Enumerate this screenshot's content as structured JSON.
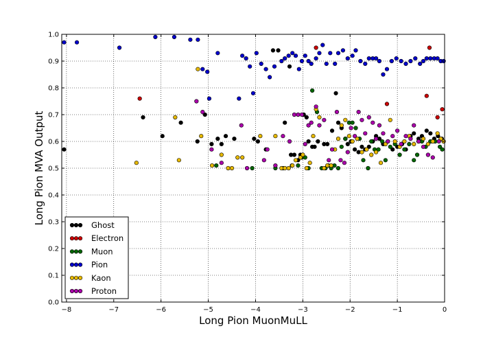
{
  "chart_data": {
    "type": "scatter",
    "title": "",
    "xlabel": "Long Pion MuonMuLL",
    "ylabel": "Long Pion MVA Output",
    "xlim": [
      -8.1,
      0
    ],
    "ylim": [
      0,
      1
    ],
    "xticks": [
      -8,
      -7,
      -6,
      -5,
      -4,
      -3,
      -2,
      -1,
      0
    ],
    "xtick_labels": [
      "−8",
      "−7",
      "−6",
      "−5",
      "−4",
      "−3",
      "−2",
      "−1",
      "0"
    ],
    "yticks": [
      0.0,
      0.1,
      0.2,
      0.3,
      0.4,
      0.5,
      0.6,
      0.7,
      0.8,
      0.9,
      1.0
    ],
    "ytick_labels": [
      "0.0",
      "0.1",
      "0.2",
      "0.3",
      "0.4",
      "0.5",
      "0.6",
      "0.7",
      "0.8",
      "0.9",
      "1.0"
    ],
    "grid": true,
    "legend_position": "bottom-left",
    "series": [
      {
        "name": "Ghost",
        "color": "#000000",
        "points": [
          [
            -8.05,
            0.57
          ],
          [
            -6.38,
            0.69
          ],
          [
            -5.97,
            0.62
          ],
          [
            -5.58,
            0.67
          ],
          [
            -5.23,
            0.6
          ],
          [
            -5.07,
            0.7
          ],
          [
            -4.93,
            0.59
          ],
          [
            -4.8,
            0.61
          ],
          [
            -4.72,
            0.59
          ],
          [
            -4.63,
            0.62
          ],
          [
            -4.45,
            0.61
          ],
          [
            -4.03,
            0.61
          ],
          [
            -3.95,
            0.6
          ],
          [
            -3.78,
            0.57
          ],
          [
            -3.63,
            0.94
          ],
          [
            -3.52,
            0.94
          ],
          [
            -3.38,
            0.67
          ],
          [
            -3.28,
            0.88
          ],
          [
            -3.25,
            0.55
          ],
          [
            -3.18,
            0.55
          ],
          [
            -3.1,
            0.53
          ],
          [
            -3.05,
            0.55
          ],
          [
            -2.98,
            0.7
          ],
          [
            -2.92,
            0.69
          ],
          [
            -2.88,
            0.6
          ],
          [
            -2.8,
            0.58
          ],
          [
            -2.75,
            0.58
          ],
          [
            -2.68,
            0.6
          ],
          [
            -2.55,
            0.59
          ],
          [
            -2.48,
            0.59
          ],
          [
            -2.38,
            0.64
          ],
          [
            -2.3,
            0.78
          ],
          [
            -2.25,
            0.67
          ],
          [
            -2.18,
            0.65
          ],
          [
            -2.1,
            0.61
          ],
          [
            -2.05,
            0.59
          ],
          [
            -1.98,
            0.6
          ],
          [
            -1.9,
            0.57
          ],
          [
            -1.82,
            0.56
          ],
          [
            -1.75,
            0.58
          ],
          [
            -1.68,
            0.57
          ],
          [
            -1.6,
            0.58
          ],
          [
            -1.52,
            0.6
          ],
          [
            -1.45,
            0.62
          ],
          [
            -1.38,
            0.61
          ],
          [
            -1.3,
            0.59
          ],
          [
            -1.2,
            0.6
          ],
          [
            -1.1,
            0.57
          ],
          [
            -1.0,
            0.58
          ],
          [
            -0.9,
            0.59
          ],
          [
            -0.82,
            0.57
          ],
          [
            -0.72,
            0.62
          ],
          [
            -0.65,
            0.63
          ],
          [
            -0.55,
            0.61
          ],
          [
            -0.48,
            0.62
          ],
          [
            -0.38,
            0.64
          ],
          [
            -0.3,
            0.63
          ],
          [
            -0.22,
            0.61
          ],
          [
            -0.14,
            0.62
          ],
          [
            -0.06,
            0.61
          ]
        ]
      },
      {
        "name": "Electron",
        "color": "#cc0000",
        "points": [
          [
            -6.45,
            0.76
          ],
          [
            -2.72,
            0.95
          ],
          [
            -0.38,
            0.77
          ],
          [
            -0.32,
            0.95
          ],
          [
            -0.15,
            0.69
          ],
          [
            -0.05,
            0.72
          ],
          [
            -1.22,
            0.74
          ]
        ]
      },
      {
        "name": "Muon",
        "color": "#006600",
        "points": [
          [
            -4.83,
            0.51
          ],
          [
            -4.07,
            0.5
          ],
          [
            -3.58,
            0.5
          ],
          [
            -3.42,
            0.5
          ],
          [
            -3.23,
            0.51
          ],
          [
            -3.1,
            0.51
          ],
          [
            -3.02,
            0.54
          ],
          [
            -2.95,
            0.54
          ],
          [
            -2.88,
            0.5
          ],
          [
            -2.8,
            0.79
          ],
          [
            -2.7,
            0.71
          ],
          [
            -2.6,
            0.5
          ],
          [
            -2.52,
            0.5
          ],
          [
            -2.46,
            0.51
          ],
          [
            -2.4,
            0.5
          ],
          [
            -2.33,
            0.51
          ],
          [
            -2.25,
            0.5
          ],
          [
            -2.18,
            0.58
          ],
          [
            -2.1,
            0.61
          ],
          [
            -2.02,
            0.67
          ],
          [
            -1.95,
            0.67
          ],
          [
            -1.88,
            0.65
          ],
          [
            -1.8,
            0.61
          ],
          [
            -1.72,
            0.53
          ],
          [
            -1.62,
            0.5
          ],
          [
            -1.55,
            0.6
          ],
          [
            -1.48,
            0.57
          ],
          [
            -1.4,
            0.57
          ],
          [
            -1.32,
            0.6
          ],
          [
            -1.25,
            0.53
          ],
          [
            -1.15,
            0.58
          ],
          [
            -1.05,
            0.59
          ],
          [
            -0.95,
            0.55
          ],
          [
            -0.85,
            0.57
          ],
          [
            -0.75,
            0.59
          ],
          [
            -0.65,
            0.53
          ],
          [
            -0.58,
            0.55
          ],
          [
            -0.48,
            0.6
          ],
          [
            -0.4,
            0.58
          ],
          [
            -0.3,
            0.6
          ],
          [
            -0.2,
            0.6
          ],
          [
            -0.1,
            0.58
          ],
          [
            -0.05,
            0.57
          ]
        ]
      },
      {
        "name": "Pion",
        "color": "#0000cc",
        "points": [
          [
            -8.05,
            0.97
          ],
          [
            -7.78,
            0.97
          ],
          [
            -6.88,
            0.95
          ],
          [
            -6.12,
            0.99
          ],
          [
            -5.72,
            0.99
          ],
          [
            -5.38,
            0.98
          ],
          [
            -5.22,
            0.98
          ],
          [
            -5.12,
            0.87
          ],
          [
            -5.02,
            0.86
          ],
          [
            -4.98,
            0.76
          ],
          [
            -4.8,
            0.93
          ],
          [
            -4.35,
            0.76
          ],
          [
            -4.28,
            0.92
          ],
          [
            -4.2,
            0.91
          ],
          [
            -4.12,
            0.88
          ],
          [
            -4.05,
            0.78
          ],
          [
            -3.98,
            0.93
          ],
          [
            -3.88,
            0.89
          ],
          [
            -3.78,
            0.87
          ],
          [
            -3.7,
            0.84
          ],
          [
            -3.6,
            0.88
          ],
          [
            -3.45,
            0.9
          ],
          [
            -3.38,
            0.91
          ],
          [
            -3.3,
            0.92
          ],
          [
            -3.22,
            0.93
          ],
          [
            -3.15,
            0.92
          ],
          [
            -3.08,
            0.87
          ],
          [
            -3.02,
            0.9
          ],
          [
            -2.95,
            0.92
          ],
          [
            -2.88,
            0.9
          ],
          [
            -2.82,
            0.89
          ],
          [
            -2.72,
            0.91
          ],
          [
            -2.65,
            0.93
          ],
          [
            -2.58,
            0.96
          ],
          [
            -2.5,
            0.89
          ],
          [
            -2.42,
            0.93
          ],
          [
            -2.32,
            0.89
          ],
          [
            -2.25,
            0.93
          ],
          [
            -2.15,
            0.94
          ],
          [
            -2.05,
            0.91
          ],
          [
            -1.95,
            0.92
          ],
          [
            -1.88,
            0.94
          ],
          [
            -1.78,
            0.9
          ],
          [
            -1.68,
            0.89
          ],
          [
            -1.6,
            0.91
          ],
          [
            -1.52,
            0.91
          ],
          [
            -1.45,
            0.91
          ],
          [
            -1.38,
            0.9
          ],
          [
            -1.3,
            0.85
          ],
          [
            -1.22,
            0.87
          ],
          [
            -1.12,
            0.9
          ],
          [
            -1.02,
            0.91
          ],
          [
            -0.92,
            0.9
          ],
          [
            -0.82,
            0.89
          ],
          [
            -0.72,
            0.9
          ],
          [
            -0.62,
            0.91
          ],
          [
            -0.52,
            0.89
          ],
          [
            -0.45,
            0.9
          ],
          [
            -0.38,
            0.91
          ],
          [
            -0.3,
            0.91
          ],
          [
            -0.22,
            0.91
          ],
          [
            -0.15,
            0.91
          ],
          [
            -0.08,
            0.9
          ],
          [
            -0.02,
            0.9
          ]
        ]
      },
      {
        "name": "Kaon",
        "color": "#e6b800",
        "points": [
          [
            -6.52,
            0.52
          ],
          [
            -5.7,
            0.69
          ],
          [
            -5.62,
            0.53
          ],
          [
            -5.22,
            0.87
          ],
          [
            -5.15,
            0.62
          ],
          [
            -4.92,
            0.51
          ],
          [
            -4.72,
            0.55
          ],
          [
            -4.58,
            0.5
          ],
          [
            -4.5,
            0.5
          ],
          [
            -4.38,
            0.54
          ],
          [
            -4.28,
            0.54
          ],
          [
            -3.9,
            0.62
          ],
          [
            -3.58,
            0.62
          ],
          [
            -3.45,
            0.5
          ],
          [
            -3.38,
            0.5
          ],
          [
            -3.3,
            0.5
          ],
          [
            -3.22,
            0.51
          ],
          [
            -3.15,
            0.53
          ],
          [
            -3.05,
            0.54
          ],
          [
            -3.0,
            0.55
          ],
          [
            -2.92,
            0.5
          ],
          [
            -2.85,
            0.52
          ],
          [
            -2.78,
            0.62
          ],
          [
            -2.72,
            0.72
          ],
          [
            -2.65,
            0.69
          ],
          [
            -2.55,
            0.5
          ],
          [
            -2.48,
            0.51
          ],
          [
            -2.4,
            0.51
          ],
          [
            -2.32,
            0.57
          ],
          [
            -2.25,
            0.61
          ],
          [
            -2.18,
            0.66
          ],
          [
            -2.1,
            0.68
          ],
          [
            -2.02,
            0.62
          ],
          [
            -1.95,
            0.6
          ],
          [
            -1.85,
            0.61
          ],
          [
            -1.75,
            0.56
          ],
          [
            -1.65,
            0.57
          ],
          [
            -1.55,
            0.55
          ],
          [
            -1.45,
            0.56
          ],
          [
            -1.35,
            0.52
          ],
          [
            -1.25,
            0.59
          ],
          [
            -1.15,
            0.68
          ],
          [
            -1.05,
            0.6
          ],
          [
            -0.95,
            0.58
          ],
          [
            -0.85,
            0.6
          ],
          [
            -0.75,
            0.62
          ],
          [
            -0.65,
            0.59
          ],
          [
            -0.55,
            0.6
          ],
          [
            -0.45,
            0.61
          ],
          [
            -0.35,
            0.59
          ],
          [
            -0.25,
            0.6
          ],
          [
            -0.15,
            0.63
          ],
          [
            -0.08,
            0.61
          ],
          [
            -0.02,
            0.6
          ]
        ]
      },
      {
        "name": "Proton",
        "color": "#aa00aa",
        "points": [
          [
            -5.25,
            0.75
          ],
          [
            -5.12,
            0.71
          ],
          [
            -4.93,
            0.57
          ],
          [
            -4.72,
            0.52
          ],
          [
            -4.3,
            0.66
          ],
          [
            -4.18,
            0.5
          ],
          [
            -3.82,
            0.53
          ],
          [
            -3.75,
            0.57
          ],
          [
            -3.58,
            0.51
          ],
          [
            -3.42,
            0.62
          ],
          [
            -3.28,
            0.6
          ],
          [
            -3.18,
            0.7
          ],
          [
            -3.1,
            0.7
          ],
          [
            -3.02,
            0.7
          ],
          [
            -2.95,
            0.59
          ],
          [
            -2.88,
            0.66
          ],
          [
            -2.82,
            0.67
          ],
          [
            -2.72,
            0.73
          ],
          [
            -2.65,
            0.66
          ],
          [
            -2.55,
            0.68
          ],
          [
            -2.45,
            0.53
          ],
          [
            -2.38,
            0.57
          ],
          [
            -2.28,
            0.71
          ],
          [
            -2.2,
            0.53
          ],
          [
            -2.12,
            0.52
          ],
          [
            -2.05,
            0.56
          ],
          [
            -1.98,
            0.65
          ],
          [
            -1.9,
            0.62
          ],
          [
            -1.82,
            0.71
          ],
          [
            -1.75,
            0.68
          ],
          [
            -1.68,
            0.63
          ],
          [
            -1.6,
            0.69
          ],
          [
            -1.52,
            0.67
          ],
          [
            -1.45,
            0.61
          ],
          [
            -1.38,
            0.66
          ],
          [
            -1.3,
            0.63
          ],
          [
            -1.2,
            0.6
          ],
          [
            -1.1,
            0.62
          ],
          [
            -1.0,
            0.64
          ],
          [
            -0.92,
            0.59
          ],
          [
            -0.82,
            0.62
          ],
          [
            -0.72,
            0.61
          ],
          [
            -0.65,
            0.66
          ],
          [
            -0.55,
            0.6
          ],
          [
            -0.45,
            0.58
          ],
          [
            -0.35,
            0.55
          ],
          [
            -0.25,
            0.54
          ],
          [
            -0.12,
            0.6
          ]
        ]
      }
    ]
  }
}
